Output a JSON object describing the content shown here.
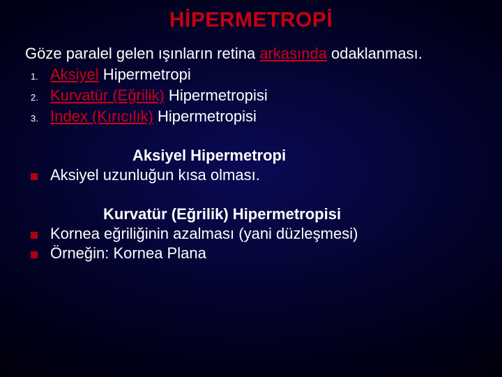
{
  "colors": {
    "title_red": "#c80010",
    "underline_red": "#d00015",
    "bullet_red": "#b00012",
    "text_white": "#ffffff",
    "bg_center": "#0a0a55",
    "bg_mid": "#040430",
    "bg_outer": "#000018",
    "bg_edge": "#000008"
  },
  "typography": {
    "title_fontsize": 30,
    "body_fontsize": 22,
    "list_number_fontsize": 13,
    "font_family": "Arial"
  },
  "title": "HİPERMETROPİ",
  "intro": {
    "pre": "Göze paralel gelen ışınların retina ",
    "underlined": "arkasında",
    "post": " odaklanması."
  },
  "ordered": [
    {
      "num": "1.",
      "underlined": "Aksiyel",
      "rest": " Hipermetropi"
    },
    {
      "num": "2.",
      "underlined": "Kurvatür (Eğrilik)",
      "rest": " Hipermetropisi"
    },
    {
      "num": "3.",
      "underlined": "Index (Kırıcılık)",
      "rest": " Hipermetropisi"
    }
  ],
  "section1": {
    "heading": "Aksiyel Hipermetropi",
    "bullets": [
      "Aksiyel uzunluğun kısa olması."
    ]
  },
  "section2": {
    "heading": "Kurvatür (Eğrilik) Hipermetropisi",
    "bullets": [
      "Kornea eğriliğinin azalması (yani düzleşmesi)",
      "Örneğin: Kornea Plana"
    ]
  }
}
